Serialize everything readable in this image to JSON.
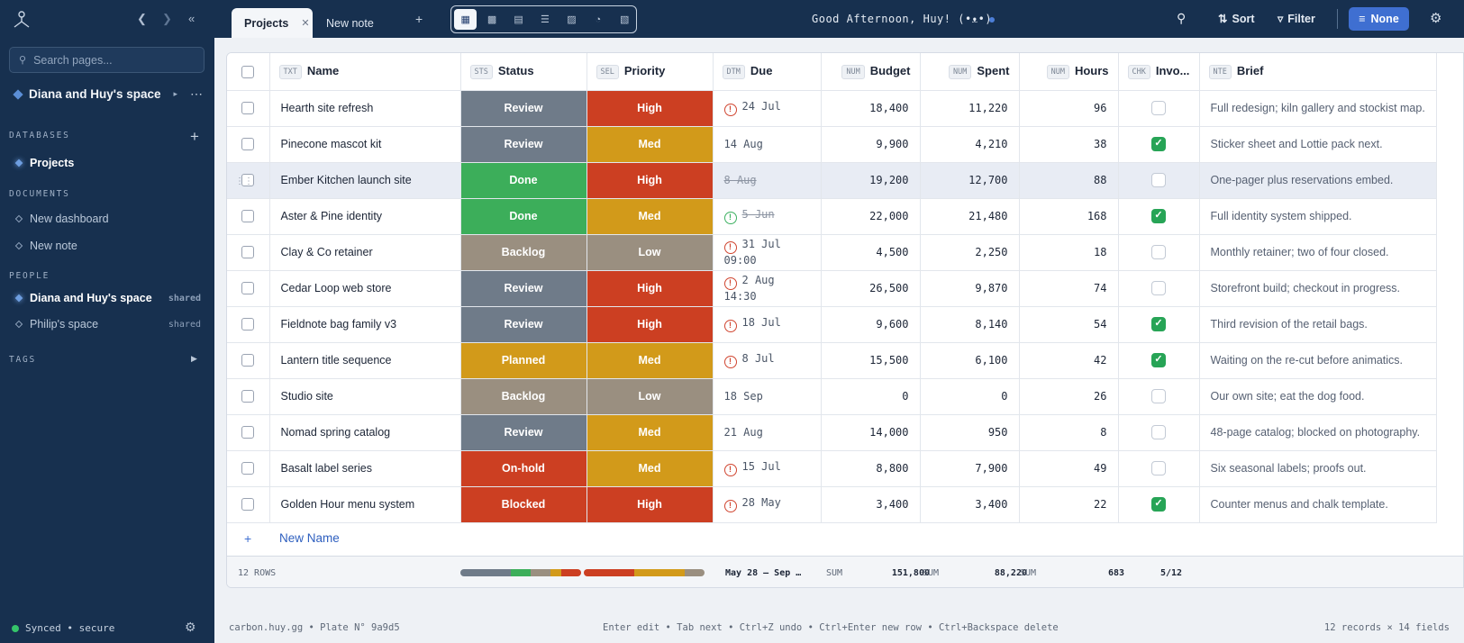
{
  "sidebar": {
    "search_placeholder": "Search pages...",
    "space_name": "Diana and Huy's space",
    "sections": {
      "databases": "DATABASES",
      "documents": "DOCUMENTS",
      "people": "PEOPLE",
      "tags": "TAGS"
    },
    "databases": [
      {
        "label": "Projects"
      }
    ],
    "documents": [
      {
        "label": "New dashboard"
      },
      {
        "label": "New note"
      }
    ],
    "people": [
      {
        "label": "Diana and Huy's space",
        "tag": "shared"
      },
      {
        "label": "Philip's space",
        "tag": "shared"
      }
    ],
    "status": "Synced • secure"
  },
  "topbar": {
    "tabs": [
      {
        "label": "Projects"
      },
      {
        "label": "New note"
      }
    ],
    "greeting": "Good Afternoon, Huy! (•ᴥ•)",
    "sort_label": "Sort",
    "filter_label": "Filter",
    "none_label": "None"
  },
  "table": {
    "columns": [
      {
        "type": "TXT",
        "label": "Name"
      },
      {
        "type": "STS",
        "label": "Status"
      },
      {
        "type": "SEL",
        "label": "Priority"
      },
      {
        "type": "DTM",
        "label": "Due"
      },
      {
        "type": "NUM",
        "label": "Budget"
      },
      {
        "type": "NUM",
        "label": "Spent"
      },
      {
        "type": "NUM",
        "label": "Hours"
      },
      {
        "type": "CHK",
        "label": "Invo..."
      },
      {
        "type": "NTE",
        "label": "Brief"
      }
    ],
    "rows": [
      {
        "name": "Hearth site refresh",
        "status": "Review",
        "priority": "High",
        "due": "24 Jul",
        "due_alert": "overdue",
        "budget": "18,400",
        "spent": "11,220",
        "hours": "96",
        "invoiced": false,
        "brief": "Full redesign; kiln gallery and stockist map."
      },
      {
        "name": "Pinecone mascot kit",
        "status": "Review",
        "priority": "Med",
        "due": "14 Aug",
        "due_alert": "",
        "budget": "9,900",
        "spent": "4,210",
        "hours": "38",
        "invoiced": true,
        "brief": "Sticker sheet and Lottie pack next."
      },
      {
        "name": "Ember Kitchen launch site",
        "status": "Done",
        "priority": "High",
        "due": "8 Aug",
        "due_alert": "done",
        "budget": "19,200",
        "spent": "12,700",
        "hours": "88",
        "invoiced": false,
        "brief": "One-pager plus reservations embed."
      },
      {
        "name": "Aster & Pine identity",
        "status": "Done",
        "priority": "Med",
        "due": "5 Jun",
        "due_alert": "ok",
        "budget": "22,000",
        "spent": "21,480",
        "hours": "168",
        "invoiced": true,
        "brief": "Full identity system shipped."
      },
      {
        "name": "Clay & Co retainer",
        "status": "Backlog",
        "priority": "Low",
        "due": "31 Jul 09:00",
        "due_alert": "overdue",
        "budget": "4,500",
        "spent": "2,250",
        "hours": "18",
        "invoiced": false,
        "brief": "Monthly retainer; two of four closed."
      },
      {
        "name": "Cedar Loop web store",
        "status": "Review",
        "priority": "High",
        "due": "2 Aug 14:30",
        "due_alert": "overdue",
        "budget": "26,500",
        "spent": "9,870",
        "hours": "74",
        "invoiced": false,
        "brief": "Storefront build; checkout in progress."
      },
      {
        "name": "Fieldnote bag family v3",
        "status": "Review",
        "priority": "High",
        "due": "18 Jul",
        "due_alert": "overdue",
        "budget": "9,600",
        "spent": "8,140",
        "hours": "54",
        "invoiced": true,
        "brief": "Third revision of the retail bags."
      },
      {
        "name": "Lantern title sequence",
        "status": "Planned",
        "priority": "Med",
        "due": "8 Jul",
        "due_alert": "overdue",
        "budget": "15,500",
        "spent": "6,100",
        "hours": "42",
        "invoiced": true,
        "brief": "Waiting on the re-cut before animatics."
      },
      {
        "name": "Studio site",
        "status": "Backlog",
        "priority": "Low",
        "due": "18 Sep",
        "due_alert": "",
        "budget": "0",
        "spent": "0",
        "hours": "26",
        "invoiced": false,
        "brief": "Our own site; eat the dog food."
      },
      {
        "name": "Nomad spring catalog",
        "status": "Review",
        "priority": "Med",
        "due": "21 Aug",
        "due_alert": "",
        "budget": "14,000",
        "spent": "950",
        "hours": "8",
        "invoiced": false,
        "brief": "48-page catalog; blocked on photography."
      },
      {
        "name": "Basalt label series",
        "status": "On-hold",
        "priority": "Med",
        "due": "15 Jul",
        "due_alert": "overdue",
        "budget": "8,800",
        "spent": "7,900",
        "hours": "49",
        "invoiced": false,
        "brief": "Six seasonal labels; proofs out."
      },
      {
        "name": "Golden Hour menu system",
        "status": "Blocked",
        "priority": "High",
        "due": "28 May",
        "due_alert": "overdue",
        "budget": "3,400",
        "spent": "3,400",
        "hours": "22",
        "invoiced": true,
        "brief": "Counter menus and chalk template."
      }
    ],
    "new_row_label": "New Name",
    "footer": {
      "rows": "12 ROWS",
      "due_range": "May 28 – Sep …",
      "sum_label": "SUM",
      "budget_sum": "151,800",
      "spent_sum": "88,220",
      "hours_sum": "683",
      "invoiced": "5/12"
    }
  },
  "colors": {
    "status": {
      "Review": "#6f7b89",
      "Done": "#3cae5a",
      "Backlog": "#9a8f80",
      "Planned": "#d29a1a",
      "On-hold": "#cc3f22",
      "Blocked": "#cc3f22"
    },
    "priority": {
      "High": "#cc3f22",
      "Med": "#d29a1a",
      "Low": "#9a8f80"
    },
    "accent": "#3f6fd1",
    "sidebar_bg": "#17304f"
  },
  "statusbar": {
    "left": "carbon.huy.gg • Plate N° 9a9d5",
    "hints": "Enter edit • Tab next • Ctrl+Z undo • Ctrl+Enter new row • Ctrl+Backspace delete",
    "right": "12 records × 14 fields"
  }
}
